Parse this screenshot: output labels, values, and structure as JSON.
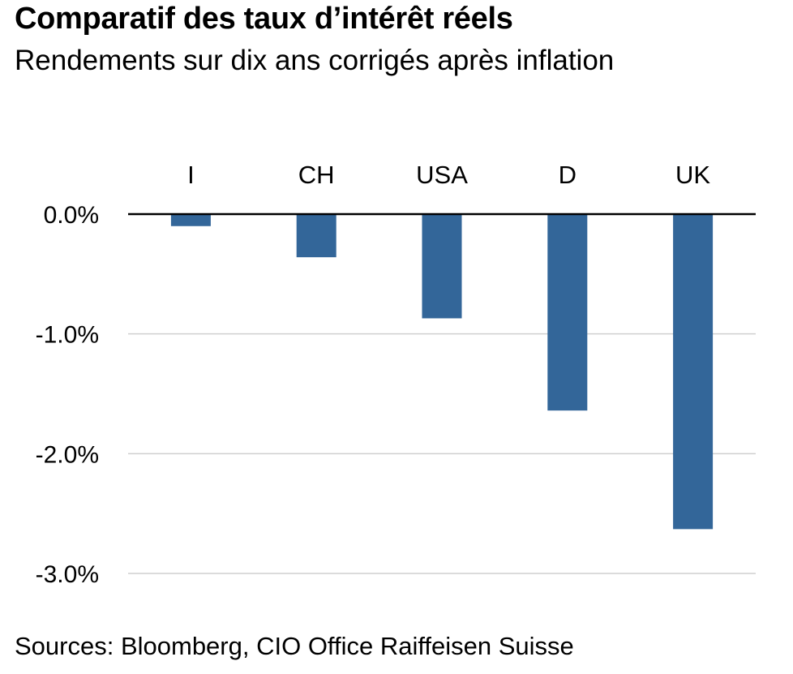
{
  "title": "Comparatif des taux d’intérêt réels",
  "subtitle": "Rendements sur dix ans corrigés après inflation",
  "source": "Sources: Bloomberg, CIO Office Raiffeisen Suisse",
  "colors": {
    "bar": "#336699",
    "grid": "#cfcfcf",
    "zero_line": "#000000"
  },
  "chart_data": {
    "type": "bar",
    "categories": [
      "I",
      "CH",
      "USA",
      "D",
      "UK"
    ],
    "values": [
      -0.1,
      -0.36,
      -0.87,
      -1.64,
      -2.63
    ],
    "ylim": [
      -3.0,
      0.0
    ],
    "yticks": [
      0.0,
      -1.0,
      -2.0,
      -3.0
    ],
    "ytick_labels": [
      "0.0%",
      "-1.0%",
      "-2.0%",
      "-3.0%"
    ],
    "category_labels_position": "top",
    "grid": true,
    "legend": "none"
  }
}
